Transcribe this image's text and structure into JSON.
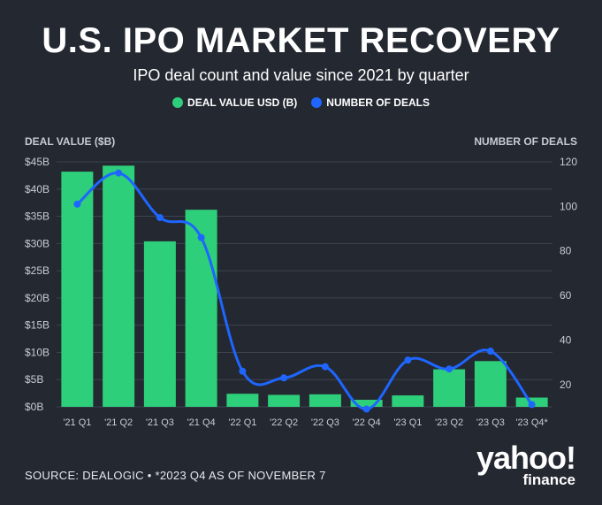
{
  "title": "U.S. IPO MARKET RECOVERY",
  "subtitle": "IPO deal count and value since 2021 by quarter",
  "legend": {
    "value_label": "DEAL VALUE USD (B)",
    "deals_label": "NUMBER OF DEALS"
  },
  "colors": {
    "bar": "#2ecf7a",
    "line": "#1f66ff",
    "grid": "#3e4450",
    "background": "#232831"
  },
  "footer": "SOURCE: DEALOGIC • *2023 Q4 AS OF NOVEMBER 7",
  "logo": {
    "main": "yahoo!",
    "sub": "finance"
  },
  "chart_data": {
    "type": "bar+line",
    "title": "U.S. IPO MARKET RECOVERY",
    "left_axis_label": "DEAL VALUE ($B)",
    "right_axis_label": "NUMBER OF DEALS",
    "categories": [
      "'21 Q1",
      "'21 Q2",
      "'21 Q3",
      "'21 Q4",
      "'22 Q1",
      "'22 Q2",
      "'22 Q3",
      "'22 Q4",
      "'23 Q1",
      "'23 Q2",
      "'23 Q3",
      "'23 Q4*"
    ],
    "series": [
      {
        "name": "DEAL VALUE USD (B)",
        "type": "bar",
        "axis": "left",
        "values": [
          43.2,
          44.3,
          30.4,
          36.2,
          2.4,
          2.2,
          2.3,
          1.3,
          2.1,
          6.9,
          8.4,
          1.7
        ]
      },
      {
        "name": "NUMBER OF DEALS",
        "type": "line",
        "axis": "right",
        "values": [
          101,
          115,
          95,
          86,
          26,
          23,
          28,
          9,
          31,
          27,
          35,
          11
        ]
      }
    ],
    "left_ticks": [
      "$0B",
      "$5B",
      "$10B",
      "$15B",
      "$20B",
      "$25B",
      "$30B",
      "$35B",
      "$40B",
      "$45B"
    ],
    "left_range": [
      0,
      45
    ],
    "right_ticks": [
      "20",
      "40",
      "60",
      "80",
      "100",
      "120"
    ],
    "right_range": [
      10,
      120
    ]
  }
}
